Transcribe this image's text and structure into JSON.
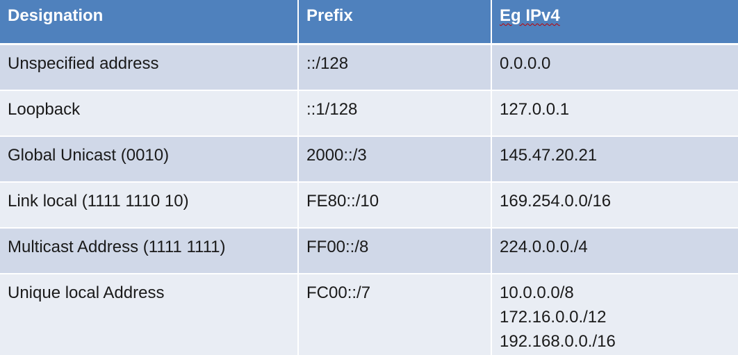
{
  "table": {
    "headers": [
      "Designation",
      "Prefix",
      "Eg IPv4"
    ],
    "rows": [
      {
        "designation": "Unspecified address",
        "prefix": "::/128",
        "ipv4": [
          "0.0.0.0"
        ]
      },
      {
        "designation": "Loopback",
        "prefix": "::1/128",
        "ipv4": [
          "127.0.0.1"
        ]
      },
      {
        "designation": "Global Unicast (0010)",
        "prefix": "2000::/3",
        "ipv4": [
          "145.47.20.21"
        ]
      },
      {
        "designation": "Link local (1111 1110 10)",
        "prefix": "FE80::/10",
        "ipv4": [
          "169.254.0.0/16"
        ]
      },
      {
        "designation": "Multicast Address (1111 1111)",
        "prefix": "FF00::/8",
        "ipv4": [
          "224.0.0.0./4"
        ]
      },
      {
        "designation": "Unique local Address",
        "prefix": "FC00::/7",
        "ipv4": [
          "10.0.0.0/8",
          "172.16.0.0./12",
          "192.168.0.0./16"
        ]
      }
    ]
  },
  "colors": {
    "header_bg": "#4f81bd",
    "row_odd": "#d0d8e8",
    "row_even": "#e9edf4",
    "header_text": "#ffffff"
  }
}
